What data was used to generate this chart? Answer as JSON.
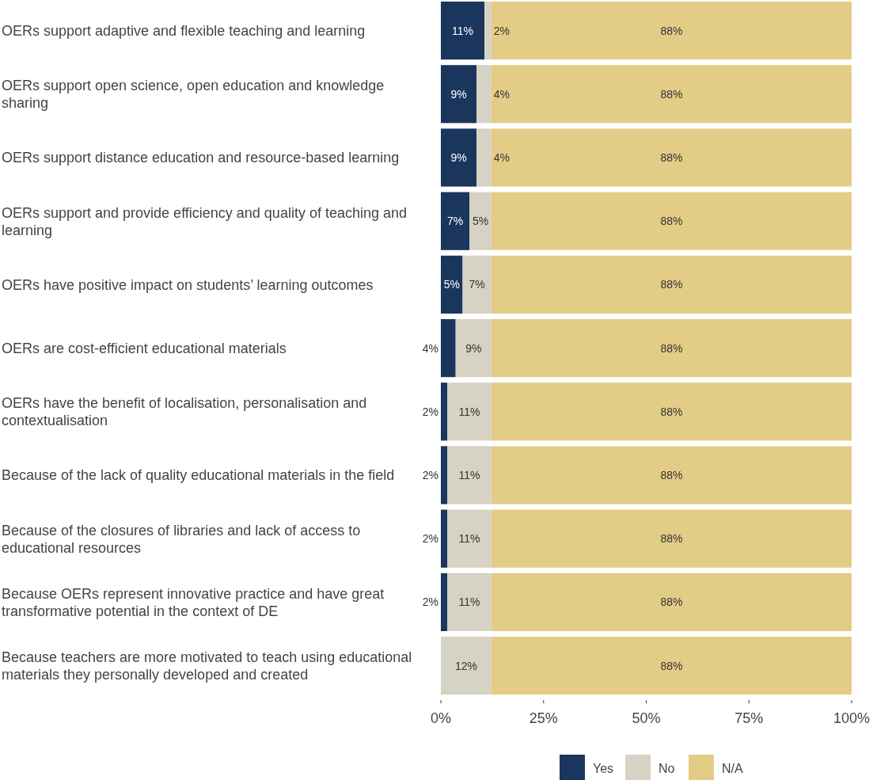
{
  "chart_data": {
    "type": "bar",
    "orientation": "horizontal",
    "stacked": true,
    "legend": "bottom",
    "grid": false,
    "categories": [
      "OERs support adaptive and flexible teaching and learning",
      "OERs support open science, open education and knowledge sharing",
      "OERs support distance education and resource-based learning",
      "OERs support and provide efficiency and quality of teaching and learning",
      "OERs have positive impact on students’ learning outcomes",
      "OERs are cost-efficient educational materials",
      "OERs have the benefit of localisation, personalisation and contextualisation",
      "Because of the lack of quality educational materials in the field",
      "Because of the closures of libraries and lack of access to educational resources",
      "Because OERs represent innovative practice and have great transformative potential in the context of DE",
      "Because teachers are more motivated to teach using educational materials they personally developed and created"
    ],
    "xlim": [
      0,
      100
    ],
    "xticks": [
      {
        "value": 0,
        "label": "0%"
      },
      {
        "value": 25,
        "label": "25%"
      },
      {
        "value": 50,
        "label": "50%"
      },
      {
        "value": 75,
        "label": "75%"
      },
      {
        "value": 100,
        "label": "100%"
      }
    ],
    "series": [
      {
        "name": "Yes",
        "color": "#1b365d",
        "values": [
          10.6,
          8.7,
          8.7,
          7.0,
          5.3,
          3.6,
          1.6,
          1.6,
          1.6,
          1.6,
          0
        ],
        "value_labels": [
          "11%",
          "9%",
          "9%",
          "7%",
          "5%",
          "4%",
          "2%",
          "2%",
          "2%",
          "2%",
          null
        ]
      },
      {
        "name": "No",
        "color": "#d6d2c4",
        "values": [
          1.7,
          3.6,
          3.6,
          5.3,
          7.0,
          8.7,
          10.7,
          10.7,
          10.7,
          10.7,
          12.3
        ],
        "value_labels": [
          "2%",
          "4%",
          "4%",
          "5%",
          "7%",
          "9%",
          "11%",
          "11%",
          "11%",
          "11%",
          "12%"
        ]
      },
      {
        "name": "N/A",
        "color": "#e3cd86",
        "values": [
          87.7,
          87.7,
          87.7,
          87.7,
          87.7,
          87.7,
          87.7,
          87.7,
          87.7,
          87.7,
          87.7
        ],
        "value_labels": [
          "88%",
          "88%",
          "88%",
          "88%",
          "88%",
          "88%",
          "88%",
          "88%",
          "88%",
          "88%",
          "88%"
        ]
      }
    ]
  }
}
